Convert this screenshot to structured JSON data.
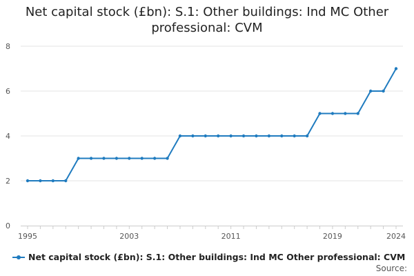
{
  "chart_data": {
    "type": "line",
    "title_lines": [
      "Net capital stock (£bn): S.1: Other buildings: Ind MC Other",
      "professional: CVM"
    ],
    "xlabel": "",
    "ylabel": "",
    "x": [
      1995,
      1996,
      1997,
      1998,
      1999,
      2000,
      2001,
      2002,
      2003,
      2004,
      2005,
      2006,
      2007,
      2008,
      2009,
      2010,
      2011,
      2012,
      2013,
      2014,
      2015,
      2016,
      2017,
      2018,
      2019,
      2020,
      2021,
      2022,
      2023,
      2024
    ],
    "x_tick_labels": [
      "1995",
      "2003",
      "2011",
      "2019",
      "2024"
    ],
    "y_tick_labels": [
      "0",
      "2",
      "4",
      "6",
      "8"
    ],
    "xlim": [
      1995,
      2024
    ],
    "ylim": [
      0,
      8
    ],
    "grid": "horizontal",
    "legend_position": "bottom",
    "series": [
      {
        "name": "Net capital stock (£bn): S.1: Other buildings: Ind MC Other professional: CVM",
        "color": "#1f7bbf",
        "values": [
          2,
          2,
          2,
          2,
          3,
          3,
          3,
          3,
          3,
          3,
          3,
          3,
          4,
          4,
          4,
          4,
          4,
          4,
          4,
          4,
          4,
          4,
          4,
          5,
          5,
          5,
          5,
          6,
          6,
          7
        ]
      }
    ]
  },
  "source_label": "Source:"
}
